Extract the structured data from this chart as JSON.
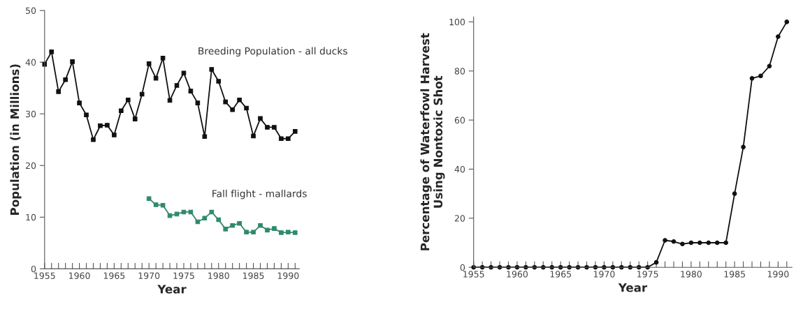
{
  "chart_data": [
    {
      "type": "line",
      "xlabel": "Year",
      "ylabel": "Population (in Millions)",
      "marker": "square",
      "legend": false,
      "grid": false,
      "xlim": [
        1955,
        1991.6
      ],
      "ylim": [
        0,
        50
      ],
      "yticks": [
        0,
        10,
        20,
        30,
        40,
        50
      ],
      "xticks": [
        1955,
        {
          "value": 1956,
          "label": null
        },
        {
          "value": 1957,
          "label": null
        },
        {
          "value": 1958,
          "label": null
        },
        {
          "value": 1959,
          "label": null
        },
        1960,
        {
          "value": 1961,
          "label": null
        },
        {
          "value": 1962,
          "label": null
        },
        {
          "value": 1963,
          "label": null
        },
        {
          "value": 1964,
          "label": null
        },
        1965,
        {
          "value": 1966,
          "label": null
        },
        {
          "value": 1967,
          "label": null
        },
        {
          "value": 1968,
          "label": null
        },
        {
          "value": 1969,
          "label": null
        },
        1970,
        {
          "value": 1971,
          "label": null
        },
        {
          "value": 1972,
          "label": null
        },
        {
          "value": 1973,
          "label": null
        },
        {
          "value": 1974,
          "label": null
        },
        1975,
        {
          "value": 1976,
          "label": null
        },
        {
          "value": 1977,
          "label": null
        },
        {
          "value": 1978,
          "label": null
        },
        {
          "value": 1979,
          "label": null
        },
        1980,
        {
          "value": 1981,
          "label": null
        },
        {
          "value": 1982,
          "label": null
        },
        {
          "value": 1983,
          "label": null
        },
        {
          "value": 1984,
          "label": null
        },
        1985,
        {
          "value": 1986,
          "label": null
        },
        {
          "value": 1987,
          "label": null
        },
        {
          "value": 1988,
          "label": null
        },
        {
          "value": 1989,
          "label": null
        },
        1990,
        {
          "value": 1991,
          "label": null
        }
      ],
      "series": [
        {
          "name": "Breeding Population - all ducks",
          "color": "#111111",
          "x": [
            1955,
            1956,
            1957,
            1958,
            1959,
            1960,
            1961,
            1962,
            1963,
            1964,
            1965,
            1966,
            1967,
            1968,
            1969,
            1970,
            1971,
            1972,
            1973,
            1974,
            1975,
            1976,
            1977,
            1978,
            1979,
            1980,
            1981,
            1982,
            1983,
            1984,
            1985,
            1986,
            1987,
            1988,
            1989,
            1990,
            1991
          ],
          "values": [
            39.6,
            42.0,
            34.3,
            36.6,
            40.1,
            32.1,
            29.8,
            25.0,
            27.7,
            27.8,
            25.9,
            30.6,
            32.7,
            29.0,
            33.8,
            39.7,
            36.9,
            40.8,
            32.6,
            35.5,
            37.9,
            34.4,
            32.1,
            25.6,
            38.6,
            36.3,
            32.3,
            30.8,
            32.7,
            31.1,
            25.7,
            29.1,
            27.4,
            27.4,
            25.2,
            25.2,
            26.6
          ]
        },
        {
          "name": "Fall flight - mallards",
          "color": "#2e8b6a",
          "x": [
            1970,
            1971,
            1972,
            1973,
            1974,
            1975,
            1976,
            1977,
            1978,
            1979,
            1980,
            1981,
            1982,
            1983,
            1984,
            1985,
            1986,
            1987,
            1988,
            1989,
            1990,
            1991
          ],
          "values": [
            13.6,
            12.4,
            12.3,
            10.3,
            10.6,
            11.0,
            11.0,
            9.1,
            9.8,
            11.0,
            9.5,
            7.7,
            8.4,
            8.8,
            7.1,
            7.1,
            8.4,
            7.5,
            7.8,
            7.0,
            7.1,
            7.0
          ]
        }
      ]
    },
    {
      "type": "line",
      "xlabel": "Year",
      "ylabel": "Percentage of Waterfowl Harvest\nUsing Nontoxic Shot",
      "marker": "circle",
      "legend": false,
      "grid": false,
      "xlim": [
        1955,
        1991.6
      ],
      "ylim": [
        0,
        102
      ],
      "yticks": [
        0,
        20,
        40,
        60,
        80,
        100
      ],
      "xticks": [
        1955,
        {
          "value": 1956,
          "label": null
        },
        {
          "value": 1957,
          "label": null
        },
        {
          "value": 1958,
          "label": null
        },
        {
          "value": 1959,
          "label": null
        },
        1960,
        {
          "value": 1961,
          "label": null
        },
        {
          "value": 1962,
          "label": null
        },
        {
          "value": 1963,
          "label": null
        },
        {
          "value": 1964,
          "label": null
        },
        1965,
        {
          "value": 1966,
          "label": null
        },
        {
          "value": 1967,
          "label": null
        },
        {
          "value": 1968,
          "label": null
        },
        {
          "value": 1969,
          "label": null
        },
        1970,
        {
          "value": 1971,
          "label": null
        },
        {
          "value": 1972,
          "label": null
        },
        {
          "value": 1973,
          "label": null
        },
        {
          "value": 1974,
          "label": null
        },
        1975,
        {
          "value": 1976,
          "label": null
        },
        {
          "value": 1977,
          "label": null
        },
        {
          "value": 1978,
          "label": null
        },
        {
          "value": 1979,
          "label": null
        },
        1980,
        {
          "value": 1981,
          "label": null
        },
        {
          "value": 1982,
          "label": null
        },
        {
          "value": 1983,
          "label": null
        },
        {
          "value": 1984,
          "label": null
        },
        1985,
        {
          "value": 1986,
          "label": null
        },
        {
          "value": 1987,
          "label": null
        },
        {
          "value": 1988,
          "label": null
        },
        {
          "value": 1989,
          "label": null
        },
        1990,
        {
          "value": 1991,
          "label": null
        }
      ],
      "series": [
        {
          "color": "#111111",
          "x": [
            1955,
            1956,
            1957,
            1958,
            1959,
            1960,
            1961,
            1962,
            1963,
            1964,
            1965,
            1966,
            1967,
            1968,
            1969,
            1970,
            1971,
            1972,
            1973,
            1974,
            1975,
            1976,
            1977,
            1978,
            1979,
            1980,
            1981,
            1982,
            1983,
            1984,
            1985,
            1986,
            1987,
            1988,
            1989,
            1990,
            1991
          ],
          "values": [
            0,
            0,
            0,
            0,
            0,
            0,
            0,
            0,
            0,
            0,
            0,
            0,
            0,
            0,
            0,
            0,
            0,
            0,
            0,
            0,
            0,
            2,
            11,
            10.5,
            9.5,
            10,
            10,
            10,
            10,
            10,
            30,
            49,
            77,
            78,
            82,
            94,
            100
          ]
        }
      ]
    }
  ]
}
